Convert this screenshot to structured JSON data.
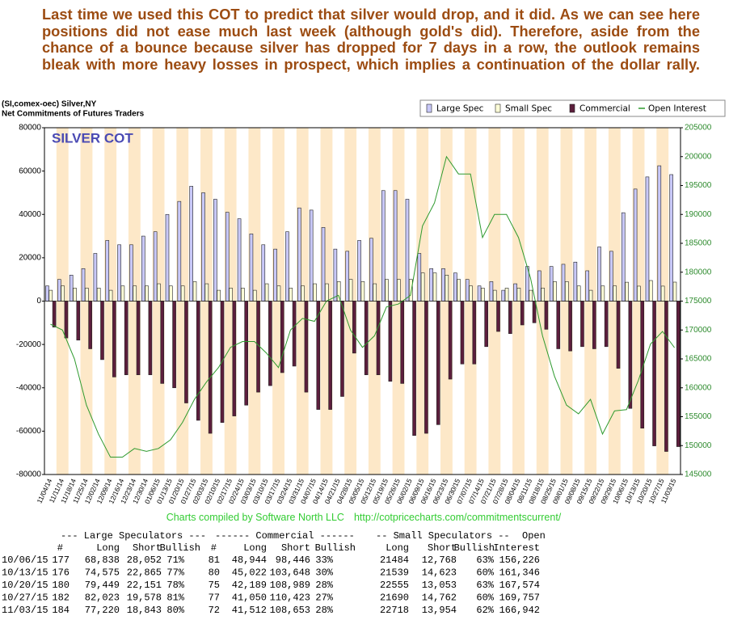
{
  "commentary": "Last time we used this COT to predict that silver would drop, and it did. As we can see here positions did not ease much last week (although gold's did). Therefore, aside from the chance of a bounce because silver has dropped for 7 days in a row, the outlook remains bleak with more heavy losses in prospect, which implies a continuation of the dollar rally.",
  "chart_data": {
    "type": "bar",
    "header": [
      "(SI,comex-oec) Silver,NY",
      "Net Commitments of Futures Traders"
    ],
    "title": "SILVER COT",
    "categories": [
      "11/04/14",
      "11/11/14",
      "11/18/14",
      "11/25/14",
      "12/02/14",
      "12/09/14",
      "12/16/14",
      "12/23/14",
      "12/30/14",
      "01/06/15",
      "01/13/15",
      "01/20/15",
      "01/27/15",
      "02/03/15",
      "02/10/15",
      "02/17/15",
      "02/24/15",
      "03/03/15",
      "03/10/15",
      "03/17/15",
      "03/24/15",
      "03/31/15",
      "04/07/15",
      "04/14/15",
      "04/21/15",
      "04/28/15",
      "05/05/15",
      "05/12/15",
      "05/19/15",
      "05/26/15",
      "06/02/15",
      "06/09/15",
      "06/16/15",
      "06/23/15",
      "06/30/15",
      "07/07/15",
      "07/14/15",
      "07/21/15",
      "07/28/15",
      "08/04/15",
      "08/11/15",
      "08/18/15",
      "08/25/15",
      "09/01/15",
      "09/08/15",
      "09/15/15",
      "09/22/15",
      "09/29/15",
      "10/06/15",
      "10/13/15",
      "10/20/15",
      "10/27/15",
      "11/03/15"
    ],
    "series": [
      {
        "name": "Large Spec",
        "type": "bar",
        "color": "#c8c8f8",
        "values": [
          7000,
          10000,
          12000,
          15000,
          22000,
          28000,
          26000,
          26000,
          30000,
          32000,
          40000,
          46000,
          53000,
          50000,
          47000,
          41000,
          38000,
          31000,
          26000,
          24000,
          32000,
          43000,
          42000,
          34000,
          24000,
          23000,
          28000,
          29000,
          51000,
          51000,
          47000,
          22000,
          15000,
          15000,
          13000,
          10000,
          7000,
          9000,
          5000,
          8000,
          16000,
          14000,
          16000,
          17000,
          18000,
          14000,
          25000,
          23000,
          40786,
          51710,
          57298,
          62445,
          58377
        ]
      },
      {
        "name": "Small Spec",
        "type": "bar",
        "color": "#ffffd8",
        "values": [
          5000,
          7000,
          6000,
          6000,
          6000,
          5000,
          7000,
          7000,
          7000,
          8000,
          7000,
          7000,
          9000,
          8000,
          5000,
          6000,
          6000,
          5000,
          8000,
          7000,
          6000,
          7000,
          8000,
          8000,
          9000,
          10000,
          9000,
          8000,
          10000,
          10000,
          10000,
          13000,
          13000,
          12000,
          10000,
          7000,
          6000,
          5000,
          6000,
          6000,
          5000,
          6000,
          9000,
          9000,
          7000,
          5000,
          7000,
          7000,
          8716,
          6916,
          9502,
          6928,
          8764
        ]
      },
      {
        "name": "Commercial",
        "type": "bar",
        "color": "#5c1e3c",
        "values": [
          -12000,
          -17000,
          -18000,
          -22000,
          -27000,
          -35000,
          -34000,
          -34000,
          -34000,
          -38000,
          -40000,
          -47000,
          -55000,
          -61000,
          -56000,
          -53000,
          -48000,
          -42000,
          -39000,
          -33000,
          -30000,
          -42000,
          -50000,
          -50000,
          -44000,
          -24000,
          -34000,
          -34000,
          -37000,
          -38000,
          -62000,
          -61000,
          -57000,
          -36000,
          -29000,
          -29000,
          -21000,
          -14000,
          -15000,
          -11000,
          -10000,
          -13000,
          -22000,
          -23000,
          -21000,
          -22000,
          -21000,
          -31000,
          -49502,
          -58626,
          -66800,
          -69373,
          -67141
        ]
      },
      {
        "name": "Open Interest",
        "type": "line",
        "axis": "y2",
        "color": "#2e9a2e",
        "values": [
          171000,
          170000,
          165000,
          157000,
          152000,
          148000,
          148000,
          149500,
          149000,
          149500,
          151000,
          154000,
          158000,
          161000,
          163500,
          167000,
          168000,
          168000,
          166000,
          163500,
          170000,
          172000,
          171500,
          175000,
          176000,
          170000,
          167000,
          169000,
          174000,
          174500,
          176000,
          188000,
          192000,
          200000,
          197000,
          197000,
          186000,
          190000,
          190000,
          186000,
          179000,
          169000,
          162000,
          157000,
          155500,
          158000,
          152000,
          156000,
          156226,
          161346,
          167574,
          169757,
          166942
        ]
      }
    ],
    "ylim": [
      -80000,
      80000
    ],
    "yticks": [
      -80000,
      -60000,
      -40000,
      -20000,
      0,
      20000,
      40000,
      60000,
      80000
    ],
    "y2lim": [
      145000,
      205000
    ],
    "y2ticks": [
      145000,
      150000,
      155000,
      160000,
      165000,
      170000,
      175000,
      180000,
      185000,
      190000,
      195000,
      200000,
      205000
    ],
    "grid": false,
    "legend": "top-right"
  },
  "credit": "Charts compiled by Software North LLC",
  "url": "http://cotpricecharts.com/commitmentscurrent/",
  "table": {
    "groups": [
      "--- Large Speculators ---",
      "------ Commercial ------",
      "-- Small Speculators --",
      "Open"
    ],
    "columns": [
      "#",
      "Long",
      "Short",
      "Bullish",
      "#",
      "Long",
      "Short",
      "Bullish",
      "Long",
      "Short",
      "Bullish",
      "Interest"
    ],
    "rows": [
      [
        "10/06/15",
        "177",
        "68,838",
        "28,052",
        "71%",
        "81",
        "48,944",
        "98,446",
        "33%",
        "21484",
        "12,768",
        "63%",
        "156,226"
      ],
      [
        "10/13/15",
        "176",
        "74,575",
        "22,865",
        "77%",
        "80",
        "45,022",
        "103,648",
        "30%",
        "21539",
        "14,623",
        "60%",
        "161,346"
      ],
      [
        "10/20/15",
        "180",
        "79,449",
        "22,151",
        "78%",
        "75",
        "42,189",
        "108,989",
        "28%",
        "22555",
        "13,053",
        "63%",
        "167,574"
      ],
      [
        "10/27/15",
        "182",
        "82,023",
        "19,578",
        "81%",
        "77",
        "41,050",
        "110,423",
        "27%",
        "21690",
        "14,762",
        "60%",
        "169,757"
      ],
      [
        "11/03/15",
        "184",
        "77,220",
        "18,843",
        "80%",
        "72",
        "41,512",
        "108,653",
        "28%",
        "22718",
        "13,954",
        "62%",
        "166,942"
      ]
    ]
  }
}
